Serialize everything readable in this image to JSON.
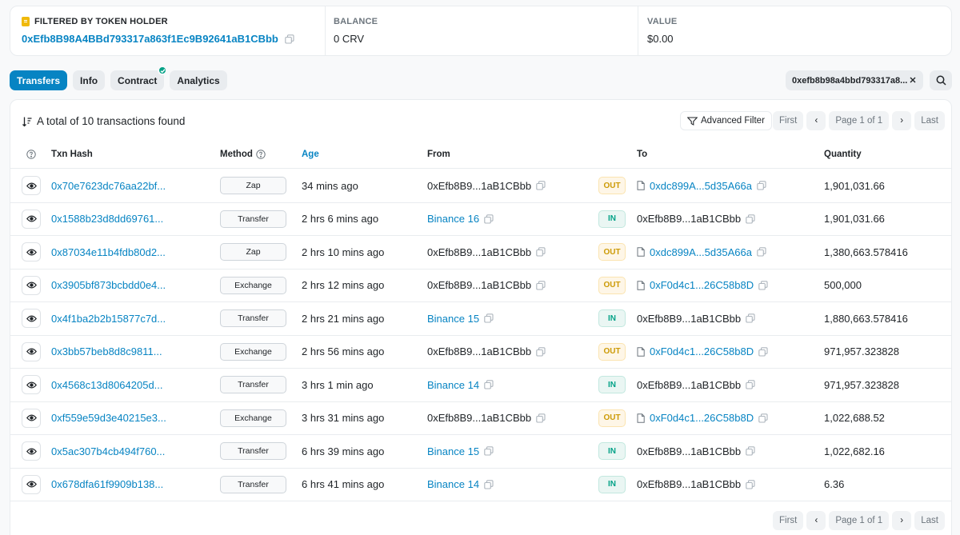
{
  "summary": {
    "holder_label": "FILTERED BY TOKEN HOLDER",
    "holder_address": "0xEfb8B98A4BBd793317a863f1Ec9B92641aB1CBbb",
    "balance_label": "BALANCE",
    "balance_value": "0 CRV",
    "value_label": "VALUE",
    "value_value": "$0.00"
  },
  "tabs": [
    {
      "label": "Transfers",
      "active": true
    },
    {
      "label": "Info",
      "active": false
    },
    {
      "label": "Contract",
      "active": false,
      "verified": true
    },
    {
      "label": "Analytics",
      "active": false
    }
  ],
  "filter_chip": "0xefb8b98a4bbd793317a8...",
  "table": {
    "total_text": "A total of 10 transactions found",
    "advanced_filter": "Advanced Filter",
    "pager": {
      "first": "First",
      "info": "Page 1 of 1",
      "last": "Last"
    },
    "headers": {
      "txn_hash": "Txn Hash",
      "method": "Method",
      "age": "Age",
      "from": "From",
      "to": "To",
      "quantity": "Quantity"
    },
    "rows": [
      {
        "hash": "0x70e7623dc76aa22bf...",
        "method": "Zap",
        "age": "34 mins ago",
        "from": "0xEfb8B9...1aB1CBbb",
        "from_link": false,
        "dir": "OUT",
        "to": "0xdc899A...5d35A66a",
        "to_contract": true,
        "qty": "1,901,031.66"
      },
      {
        "hash": "0x1588b23d8dd69761...",
        "method": "Transfer",
        "age": "2 hrs 6 mins ago",
        "from": "Binance 16",
        "from_link": true,
        "dir": "IN",
        "to": "0xEfb8B9...1aB1CBbb",
        "to_contract": false,
        "qty": "1,901,031.66"
      },
      {
        "hash": "0x87034e11b4fdb80d2...",
        "method": "Zap",
        "age": "2 hrs 10 mins ago",
        "from": "0xEfb8B9...1aB1CBbb",
        "from_link": false,
        "dir": "OUT",
        "to": "0xdc899A...5d35A66a",
        "to_contract": true,
        "qty": "1,380,663.578416"
      },
      {
        "hash": "0x3905bf873bcbdd0e4...",
        "method": "Exchange",
        "age": "2 hrs 12 mins ago",
        "from": "0xEfb8B9...1aB1CBbb",
        "from_link": false,
        "dir": "OUT",
        "to": "0xF0d4c1...26C58b8D",
        "to_contract": true,
        "qty": "500,000"
      },
      {
        "hash": "0x4f1ba2b2b15877c7d...",
        "method": "Transfer",
        "age": "2 hrs 21 mins ago",
        "from": "Binance 15",
        "from_link": true,
        "dir": "IN",
        "to": "0xEfb8B9...1aB1CBbb",
        "to_contract": false,
        "qty": "1,880,663.578416"
      },
      {
        "hash": "0x3bb57beb8d8c9811...",
        "method": "Exchange",
        "age": "2 hrs 56 mins ago",
        "from": "0xEfb8B9...1aB1CBbb",
        "from_link": false,
        "dir": "OUT",
        "to": "0xF0d4c1...26C58b8D",
        "to_contract": true,
        "qty": "971,957.323828"
      },
      {
        "hash": "0x4568c13d8064205d...",
        "method": "Transfer",
        "age": "3 hrs 1 min ago",
        "from": "Binance 14",
        "from_link": true,
        "dir": "IN",
        "to": "0xEfb8B9...1aB1CBbb",
        "to_contract": false,
        "qty": "971,957.323828"
      },
      {
        "hash": "0xf559e59d3e40215e3...",
        "method": "Exchange",
        "age": "3 hrs 31 mins ago",
        "from": "0xEfb8B9...1aB1CBbb",
        "from_link": false,
        "dir": "OUT",
        "to": "0xF0d4c1...26C58b8D",
        "to_contract": true,
        "qty": "1,022,688.52"
      },
      {
        "hash": "0x5ac307b4cb494f760...",
        "method": "Transfer",
        "age": "6 hrs 39 mins ago",
        "from": "Binance 15",
        "from_link": true,
        "dir": "IN",
        "to": "0xEfb8B9...1aB1CBbb",
        "to_contract": false,
        "qty": "1,022,682.16"
      },
      {
        "hash": "0x678dfa61f9909b138...",
        "method": "Transfer",
        "age": "6 hrs 41 mins ago",
        "from": "Binance 14",
        "from_link": true,
        "dir": "IN",
        "to": "0xEfb8B9...1aB1CBbb",
        "to_contract": false,
        "qty": "6.36"
      }
    ]
  },
  "colors": {
    "accent": "#0784c3",
    "out": "#cc9a06",
    "in": "#00a186"
  }
}
